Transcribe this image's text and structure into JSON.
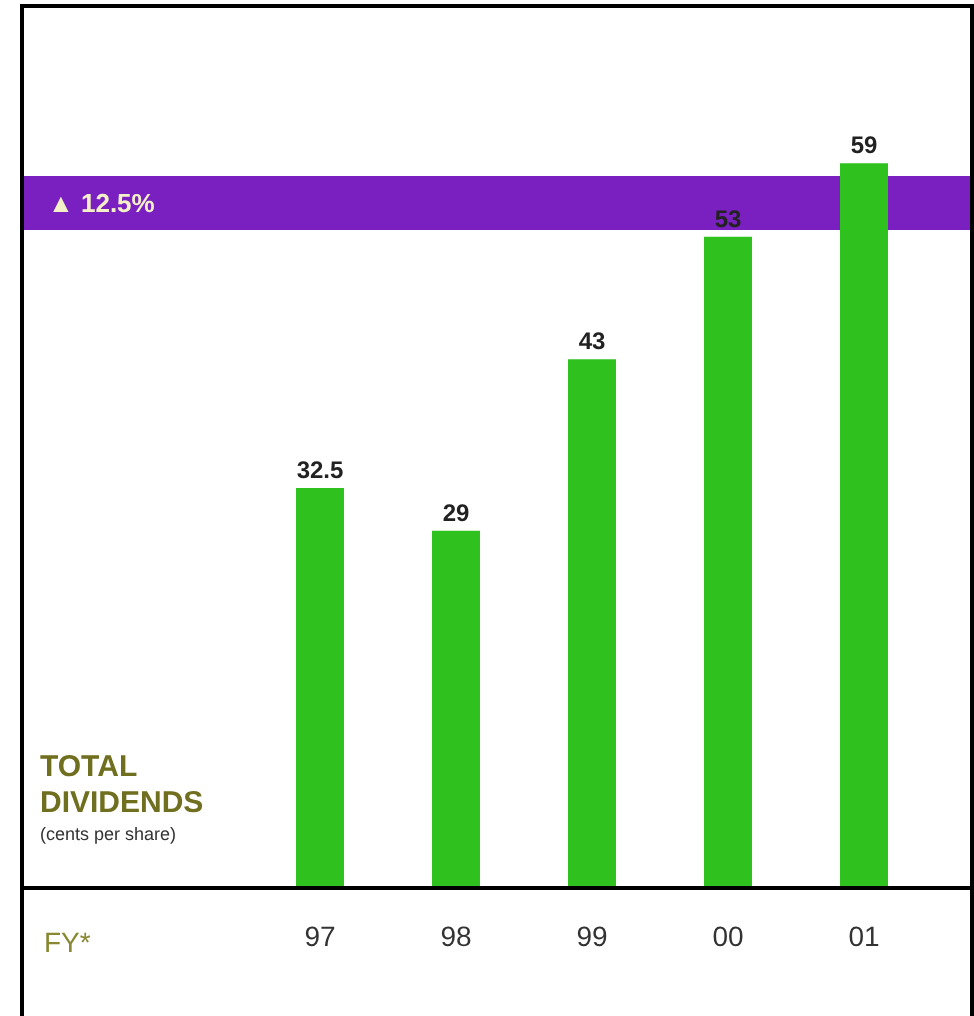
{
  "chart_data": {
    "type": "bar",
    "categories": [
      "97",
      "98",
      "99",
      "00",
      "01"
    ],
    "values": [
      32.5,
      29,
      43,
      53,
      59
    ],
    "color": "#2fc21f",
    "data_labels": true,
    "ylim": [
      0,
      72
    ],
    "tick_labels": "x",
    "bands": [
      {
        "axis": "y",
        "from": 53.5,
        "to": 58,
        "label": "▲ 12.5%",
        "color": "#7a1fc0"
      }
    ],
    "annotations": [
      "TOTAL DIVIDENDS",
      "(cents per share)",
      "FY*"
    ]
  }
}
